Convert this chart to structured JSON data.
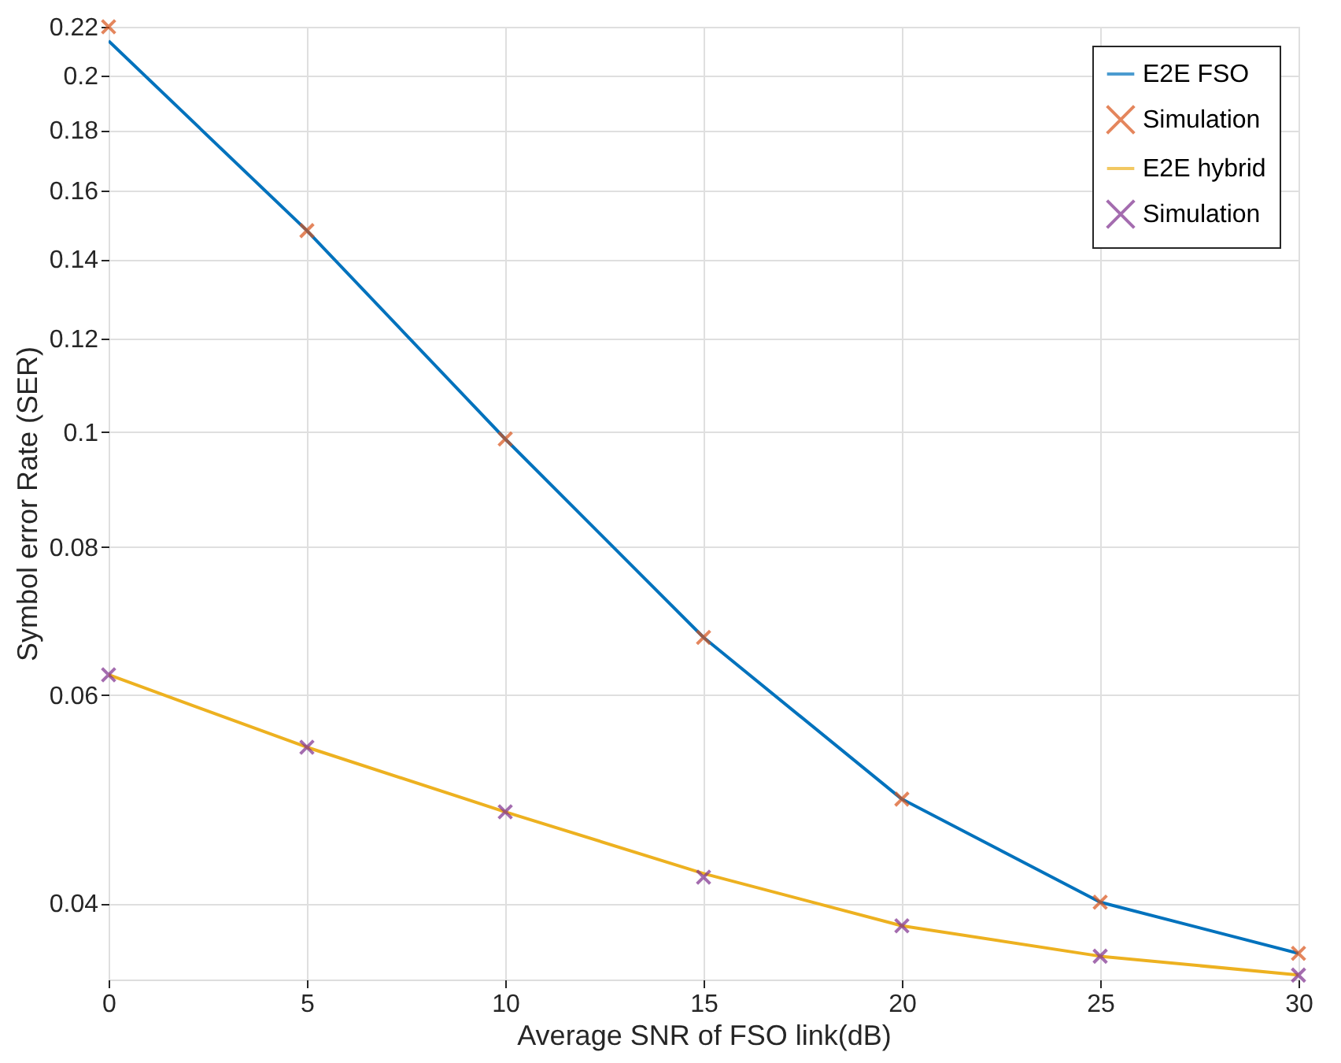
{
  "chart_data": {
    "type": "line",
    "xlabel": "Average SNR of FSO link(dB)",
    "ylabel": "Symbol error Rate (SER)",
    "x": [
      0,
      5,
      10,
      15,
      20,
      25,
      30
    ],
    "xlim": [
      0,
      30
    ],
    "xticks": [
      0,
      5,
      10,
      15,
      20,
      25,
      30
    ],
    "ylim": [
      0.0345,
      0.22
    ],
    "yticks": [
      0.04,
      0.06,
      0.08,
      0.1,
      0.12,
      0.14,
      0.16,
      0.18,
      0.2,
      0.22
    ],
    "log": "y",
    "grid": true,
    "legend": "top right",
    "series": [
      {
        "name": "E2E FSO",
        "color": "#0072bd",
        "marker": "none",
        "values": [
          0.214,
          0.148,
          0.0987,
          0.0671,
          0.049,
          0.0401,
          0.0363
        ]
      },
      {
        "name": "Simulation",
        "type": "scatter",
        "color": "#d95319",
        "marker": "cross",
        "values": [
          0.22,
          0.148,
          0.0987,
          0.0671,
          0.049,
          0.0401,
          0.0363
        ]
      },
      {
        "name": "E2E hybrid",
        "color": "#edb120",
        "marker": "none",
        "values": [
          0.0624,
          0.0542,
          0.0478,
          0.0424,
          0.0383,
          0.0361,
          0.0348
        ]
      },
      {
        "name": "Simulation",
        "type": "scatter",
        "color": "#7e2f8e",
        "marker": "cross",
        "values": [
          0.0624,
          0.0542,
          0.0478,
          0.0421,
          0.0383,
          0.0361,
          0.0348
        ]
      }
    ]
  }
}
